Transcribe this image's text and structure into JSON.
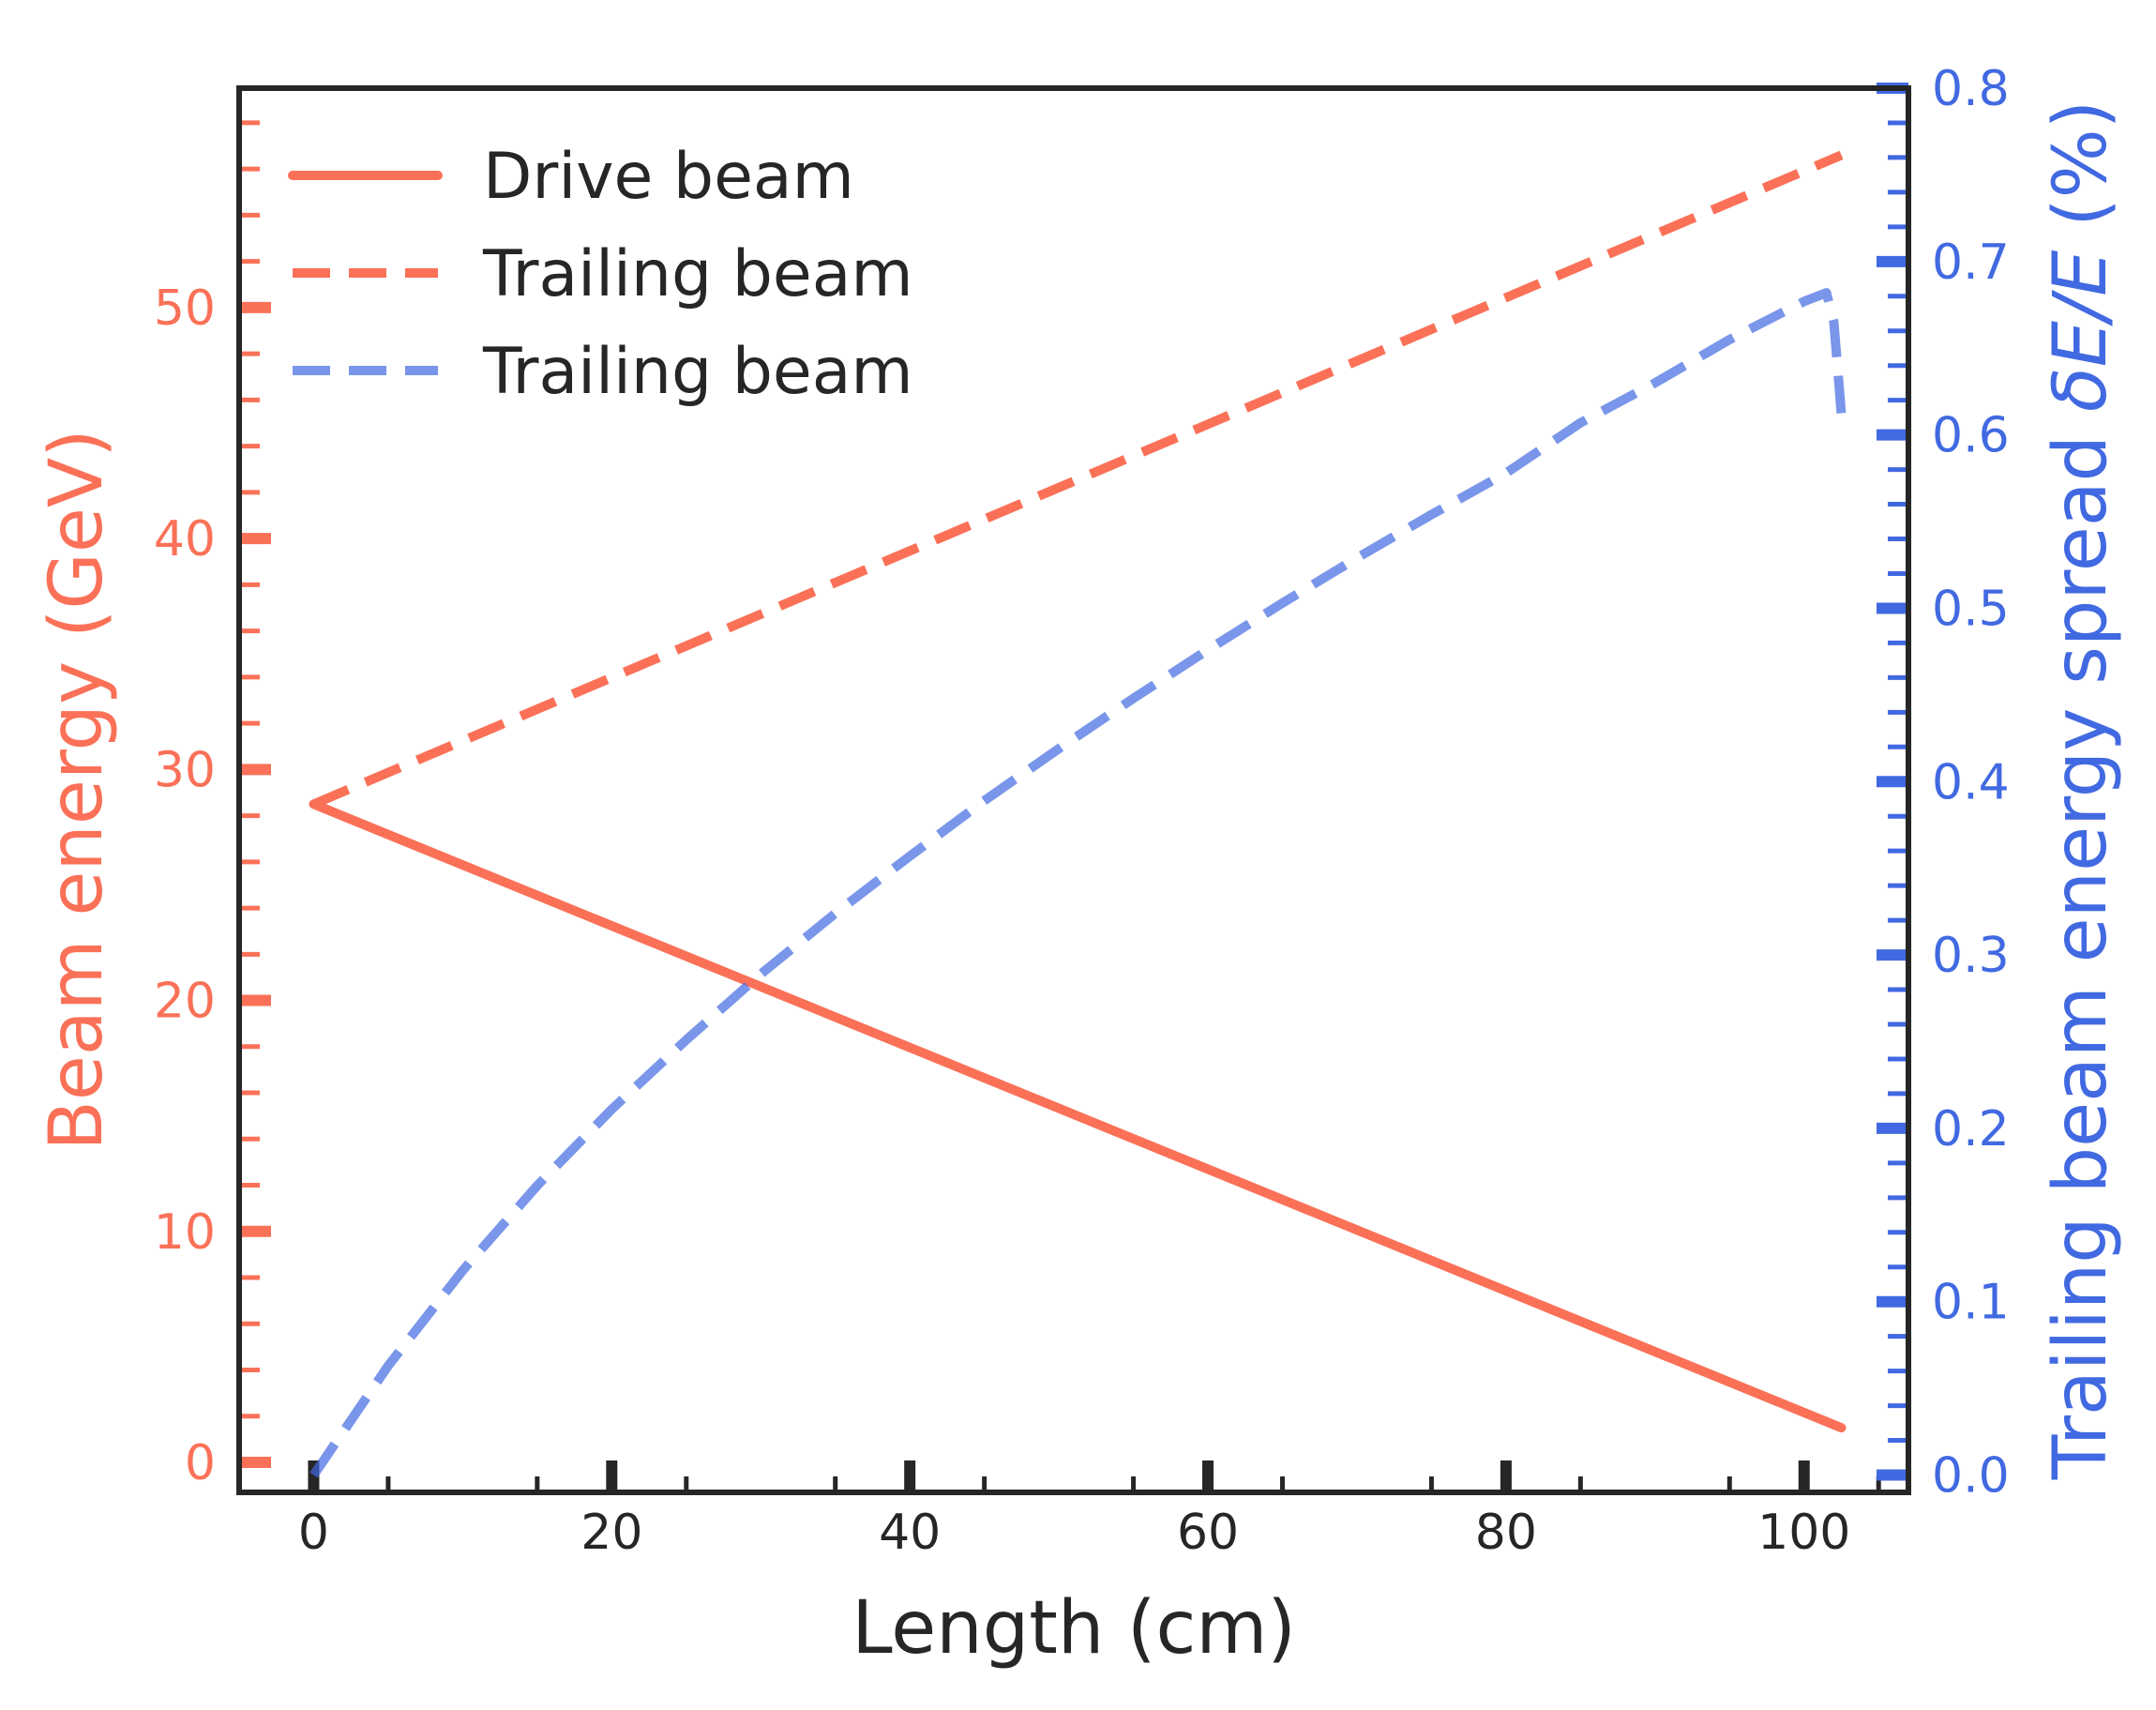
{
  "chart_data": {
    "type": "line",
    "xlabel": "Length (cm)",
    "ylabel_left": "Beam energy (GeV)",
    "ylabel_right_prefix": "Trailing beam energy spread ",
    "ylabel_right_math": "δE/E",
    "ylabel_right_suffix": " (%)",
    "xlim": [
      -5,
      107
    ],
    "ylim_left": [
      -1.3,
      59.5
    ],
    "ylim_right": [
      -0.01,
      0.8
    ],
    "x_ticks": [
      0,
      20,
      40,
      60,
      80,
      100
    ],
    "x_tick_labels": [
      "0",
      "20",
      "40",
      "60",
      "80",
      "100"
    ],
    "y_left_ticks": [
      0,
      10,
      20,
      30,
      40,
      50
    ],
    "y_left_tick_labels": [
      "0",
      "10",
      "20",
      "30",
      "40",
      "50"
    ],
    "y_right_ticks": [
      0.0,
      0.1,
      0.2,
      0.3,
      0.4,
      0.5,
      0.6,
      0.7,
      0.8
    ],
    "y_right_tick_labels": [
      "0.0",
      "0.1",
      "0.2",
      "0.3",
      "0.4",
      "0.5",
      "0.6",
      "0.7",
      "0.8"
    ],
    "legend_position": "top-left",
    "colors": {
      "energy": "#fa7158",
      "spread": "#4169e1",
      "axes": "#262626"
    },
    "series": [
      {
        "name": "Drive beam",
        "axis": "left",
        "style": "solid",
        "color": "#fa7158",
        "x": [
          0,
          102.5
        ],
        "y": [
          28.5,
          1.5
        ]
      },
      {
        "name": "Trailing beam",
        "axis": "left",
        "style": "dashed",
        "color": "#fa7158",
        "x": [
          0,
          102.5
        ],
        "y": [
          28.5,
          56.6
        ]
      },
      {
        "name": "Trailing beam",
        "axis": "right",
        "style": "dashed",
        "color": "#4169e1",
        "x": [
          0,
          5,
          10,
          15,
          20,
          25,
          30,
          35,
          40,
          45,
          50,
          55,
          60,
          65,
          70,
          75,
          80,
          85,
          90,
          95,
          100,
          101.5,
          102,
          102.5
        ],
        "y": [
          0.0,
          0.063,
          0.118,
          0.167,
          0.211,
          0.251,
          0.289,
          0.324,
          0.357,
          0.389,
          0.419,
          0.448,
          0.476,
          0.503,
          0.529,
          0.554,
          0.578,
          0.607,
          0.63,
          0.655,
          0.677,
          0.682,
          0.665,
          0.612
        ]
      }
    ]
  }
}
